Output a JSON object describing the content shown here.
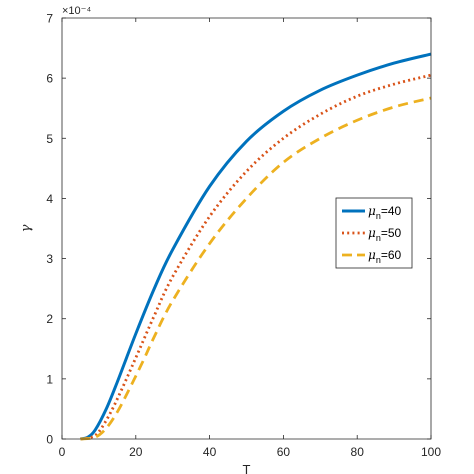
{
  "chart_data": {
    "type": "line",
    "xlabel": "T",
    "ylabel": "γ",
    "exponent_label": "×10⁻⁴",
    "xlim": [
      0,
      100
    ],
    "ylim": [
      0,
      7
    ],
    "xticks": [
      0,
      20,
      40,
      60,
      80,
      100
    ],
    "yticks": [
      0,
      1,
      2,
      3,
      4,
      5,
      6,
      7
    ],
    "grid": false,
    "legend_position": "right",
    "series": [
      {
        "name": "μn=40",
        "legend_symbol": "μ",
        "legend_sub": "n",
        "legend_value": "=40",
        "color": "#0072BD",
        "dash": "solid",
        "x": [
          5,
          7,
          9,
          12,
          15,
          20,
          25,
          30,
          40,
          50,
          60,
          70,
          80,
          90,
          100
        ],
        "values": [
          0,
          0.03,
          0.15,
          0.5,
          0.95,
          1.75,
          2.5,
          3.15,
          4.2,
          4.95,
          5.45,
          5.8,
          6.05,
          6.25,
          6.4
        ]
      },
      {
        "name": "μn=50",
        "legend_symbol": "μ",
        "legend_sub": "n",
        "legend_value": "=50",
        "color": "#D95319",
        "dash": "dot",
        "x": [
          5,
          8,
          10,
          13,
          16,
          20,
          25,
          30,
          40,
          50,
          60,
          70,
          80,
          90,
          100
        ],
        "values": [
          0,
          0.03,
          0.12,
          0.42,
          0.8,
          1.35,
          2.05,
          2.7,
          3.7,
          4.45,
          5.0,
          5.4,
          5.7,
          5.9,
          6.05
        ]
      },
      {
        "name": "μn=60",
        "legend_symbol": "μ",
        "legend_sub": "n",
        "legend_value": "=60",
        "color": "#EDB120",
        "dash": "dash",
        "x": [
          5,
          9,
          12,
          15,
          18,
          22,
          25,
          30,
          40,
          50,
          60,
          70,
          80,
          90,
          100
        ],
        "values": [
          0,
          0.03,
          0.18,
          0.45,
          0.8,
          1.3,
          1.7,
          2.3,
          3.25,
          4.0,
          4.6,
          5.0,
          5.3,
          5.52,
          5.67
        ]
      }
    ]
  }
}
